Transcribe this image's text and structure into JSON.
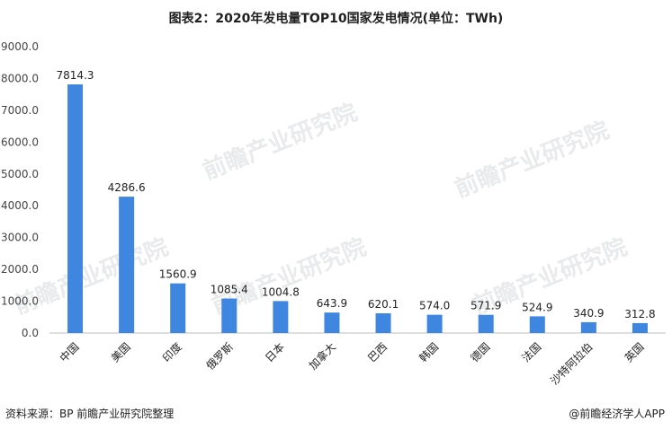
{
  "title": "图表2：2020年发电量TOP10国家发电情况(单位：TWh)",
  "source": "资料来源：BP 前瞻产业研究院整理",
  "credit": "@前瞻经济学人APP",
  "watermark": "前瞻产业研究院",
  "colors": {
    "bar": "#3f86e0",
    "axis": "#bfbfbf"
  },
  "chart_data": {
    "type": "bar",
    "title": "图表2：2020年发电量TOP10国家发电情况(单位：TWh)",
    "xlabel": "",
    "ylabel": "",
    "ylim": [
      0,
      9000
    ],
    "yticks": [
      "0.0",
      "1000.0",
      "2000.0",
      "3000.0",
      "4000.0",
      "5000.0",
      "6000.0",
      "7000.0",
      "8000.0",
      "9000.0"
    ],
    "grid": false,
    "categories": [
      "中国",
      "美国",
      "印度",
      "俄罗斯",
      "日本",
      "加拿大",
      "巴西",
      "韩国",
      "德国",
      "法国",
      "沙特阿拉伯",
      "英国"
    ],
    "values": [
      7814.3,
      4286.6,
      1560.9,
      1085.4,
      1004.8,
      643.9,
      620.1,
      574.0,
      571.9,
      524.9,
      340.9,
      312.8
    ],
    "labels": [
      "7814.3",
      "4286.6",
      "1560.9",
      "1085.4",
      "1004.8",
      "643.9",
      "620.1",
      "574.0",
      "571.9",
      "524.9",
      "340.9",
      "312.8"
    ]
  }
}
